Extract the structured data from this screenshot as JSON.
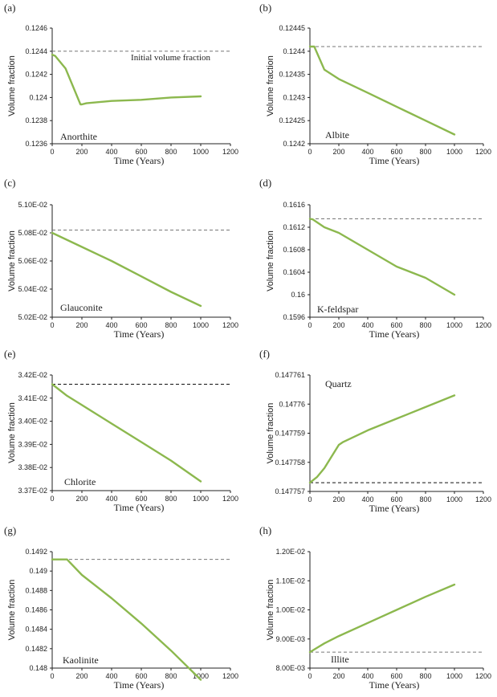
{
  "figure_title": "",
  "colors": {
    "series": "#8cb84e",
    "reference": "#777777",
    "reference_dark": "#111111",
    "axis": "#222222"
  },
  "chart_data": [
    {
      "panel": "(a)",
      "type": "line",
      "title": "Anorthite",
      "xlabel": "Time (Years)",
      "ylabel": "Volume fraction",
      "xlim": [
        0,
        1200
      ],
      "ylim": [
        0.1236,
        0.1246
      ],
      "xticks": [
        "0",
        "200",
        "400",
        "600",
        "800",
        "1000",
        "1200"
      ],
      "yticks": [
        {
          "v": 0.1236,
          "label": "0.1236"
        },
        {
          "v": 0.1238,
          "label": "0.1238"
        },
        {
          "v": 0.124,
          "label": "0.124"
        },
        {
          "v": 0.1242,
          "label": "0.1242"
        },
        {
          "v": 0.1244,
          "label": "0.1244"
        },
        {
          "v": 0.1246,
          "label": "0.1246"
        }
      ],
      "reference": {
        "value": 0.1244,
        "label": "Initial volume fraction",
        "style": "dashed",
        "color": "gray"
      },
      "series": [
        {
          "name": "Anorthite",
          "x": [
            0,
            20,
            90,
            190,
            200,
            230,
            400,
            600,
            800,
            1000
          ],
          "y": [
            0.12437,
            0.12436,
            0.12425,
            0.12394,
            0.12394,
            0.12395,
            0.12397,
            0.12398,
            0.124,
            0.12401
          ]
        }
      ]
    },
    {
      "panel": "(b)",
      "type": "line",
      "title": "Albite",
      "xlabel": "Time (Years)",
      "ylabel": "Volume fraction",
      "xlim": [
        0,
        1200
      ],
      "ylim": [
        0.1242,
        0.12445
      ],
      "xticks": [
        "0",
        "200",
        "400",
        "600",
        "800",
        "1000",
        "1200"
      ],
      "yticks": [
        {
          "v": 0.1242,
          "label": "0.1242"
        },
        {
          "v": 0.12425,
          "label": "0.12425"
        },
        {
          "v": 0.1243,
          "label": "0.1243"
        },
        {
          "v": 0.12435,
          "label": "0.12435"
        },
        {
          "v": 0.1244,
          "label": "0.1244"
        },
        {
          "v": 0.12445,
          "label": "0.12445"
        }
      ],
      "reference": {
        "value": 0.12441,
        "label": "",
        "style": "dashed",
        "color": "gray"
      },
      "series": [
        {
          "name": "Albite",
          "x": [
            0,
            30,
            100,
            200,
            400,
            600,
            800,
            1000
          ],
          "y": [
            0.12441,
            0.12441,
            0.12436,
            0.12434,
            0.12431,
            0.12428,
            0.12425,
            0.12422
          ]
        }
      ]
    },
    {
      "panel": "(c)",
      "type": "line",
      "title": "Glauconite",
      "xlabel": "Time (Years)",
      "ylabel": "Volume fraction",
      "xlim": [
        0,
        1200
      ],
      "ylim": [
        0.0502,
        0.051
      ],
      "xticks": [
        "0",
        "200",
        "400",
        "600",
        "800",
        "1000",
        "1200"
      ],
      "yticks": [
        {
          "v": 0.0502,
          "label": "5.02E-02"
        },
        {
          "v": 0.0504,
          "label": "5.04E-02"
        },
        {
          "v": 0.0506,
          "label": "5.06E-02"
        },
        {
          "v": 0.0508,
          "label": "5.08E-02"
        },
        {
          "v": 0.051,
          "label": "5.10E-02"
        }
      ],
      "reference": {
        "value": 0.05082,
        "label": "",
        "style": "dashed",
        "color": "gray"
      },
      "series": [
        {
          "name": "Glauconite",
          "x": [
            0,
            200,
            400,
            600,
            800,
            1000
          ],
          "y": [
            0.0508,
            0.0507,
            0.0506,
            0.05049,
            0.05038,
            0.05028
          ]
        }
      ]
    },
    {
      "panel": "(d)",
      "type": "line",
      "title": "K-feldspar",
      "xlabel": "Time (Years)",
      "ylabel": "Volume fraction",
      "xlim": [
        0,
        1200
      ],
      "ylim": [
        0.1596,
        0.1616
      ],
      "xticks": [
        "0",
        "200",
        "400",
        "600",
        "800",
        "1000",
        "1200"
      ],
      "yticks": [
        {
          "v": 0.1596,
          "label": "0.1596"
        },
        {
          "v": 0.16,
          "label": "0.16"
        },
        {
          "v": 0.1604,
          "label": "0.1604"
        },
        {
          "v": 0.1608,
          "label": "0.1608"
        },
        {
          "v": 0.1612,
          "label": "0.1612"
        },
        {
          "v": 0.1616,
          "label": "0.1616"
        }
      ],
      "reference": {
        "value": 0.16135,
        "label": "",
        "style": "dashed",
        "color": "gray"
      },
      "series": [
        {
          "name": "K-feldspar",
          "x": [
            0,
            20,
            100,
            200,
            400,
            600,
            800,
            1000
          ],
          "y": [
            0.16135,
            0.16134,
            0.1612,
            0.1611,
            0.1608,
            0.1605,
            0.1603,
            0.16
          ]
        }
      ]
    },
    {
      "panel": "(e)",
      "type": "line",
      "title": "Chlorite",
      "xlabel": "Time (Years)",
      "ylabel": "Volume fraction",
      "xlim": [
        0,
        1200
      ],
      "ylim": [
        0.0337,
        0.0342
      ],
      "xticks": [
        "0",
        "200",
        "400",
        "600",
        "800",
        "1000",
        "1200"
      ],
      "yticks": [
        {
          "v": 0.0337,
          "label": "3.37E-02"
        },
        {
          "v": 0.0338,
          "label": "3.38E-02"
        },
        {
          "v": 0.0339,
          "label": "3.39E-02"
        },
        {
          "v": 0.034,
          "label": "3.40E-02"
        },
        {
          "v": 0.0341,
          "label": "3.41E-02"
        },
        {
          "v": 0.0342,
          "label": "3.42E-02"
        }
      ],
      "reference": {
        "value": 0.03416,
        "label": "",
        "style": "dashed",
        "color": "black"
      },
      "series": [
        {
          "name": "Chlorite",
          "x": [
            0,
            100,
            200,
            400,
            600,
            800,
            1000
          ],
          "y": [
            0.03416,
            0.03411,
            0.03407,
            0.03399,
            0.03391,
            0.03383,
            0.03374
          ]
        }
      ]
    },
    {
      "panel": "(f)",
      "type": "line",
      "title": "Quartz",
      "xlabel": "Time (Years)",
      "ylabel": "Volume fraction",
      "xlim": [
        0,
        1200
      ],
      "ylim": [
        0.147757,
        0.147761
      ],
      "xticks": [
        "0",
        "200",
        "400",
        "600",
        "800",
        "1000",
        "1200"
      ],
      "yticks": [
        {
          "v": 0.147757,
          "label": "0.147757"
        },
        {
          "v": 0.147758,
          "label": "0.147758"
        },
        {
          "v": 0.147759,
          "label": "0.147759"
        },
        {
          "v": 0.14776,
          "label": "0.14776"
        },
        {
          "v": 0.147761,
          "label": "0.147761"
        }
      ],
      "reference": {
        "value": 0.1477573,
        "label": "",
        "style": "dashed",
        "color": "black"
      },
      "series": [
        {
          "name": "Quartz",
          "x": [
            0,
            50,
            100,
            200,
            230,
            400,
            600,
            800,
            1000
          ],
          "y": [
            0.1477573,
            0.1477575,
            0.1477578,
            0.1477586,
            0.1477587,
            0.1477591,
            0.1477595,
            0.1477599,
            0.1477603
          ]
        }
      ]
    },
    {
      "panel": "(g)",
      "type": "line",
      "title": "Kaolinite",
      "xlabel": "Time (Years)",
      "ylabel": "Volume fraction",
      "xlim": [
        0,
        1200
      ],
      "ylim": [
        0.148,
        0.1492
      ],
      "xticks": [
        "0",
        "200",
        "400",
        "600",
        "800",
        "1000",
        "1200"
      ],
      "yticks": [
        {
          "v": 0.148,
          "label": "0.148"
        },
        {
          "v": 0.1482,
          "label": "0.1482"
        },
        {
          "v": 0.1484,
          "label": "0.1484"
        },
        {
          "v": 0.1486,
          "label": "0.1486"
        },
        {
          "v": 0.1488,
          "label": "0.1488"
        },
        {
          "v": 0.149,
          "label": "0.149"
        },
        {
          "v": 0.1492,
          "label": "0.1492"
        }
      ],
      "reference": {
        "value": 0.14912,
        "label": "",
        "style": "dashed",
        "color": "gray"
      },
      "series": [
        {
          "name": "Kaolinite",
          "x": [
            0,
            100,
            200,
            400,
            600,
            800,
            1000
          ],
          "y": [
            0.14912,
            0.14912,
            0.14896,
            0.14872,
            0.14846,
            0.14818,
            0.14788
          ]
        }
      ]
    },
    {
      "panel": "(h)",
      "type": "line",
      "title": "Illite",
      "xlabel": "Time (Years)",
      "ylabel": "Volume fraction",
      "xlim": [
        0,
        1200
      ],
      "ylim": [
        0.008,
        0.012
      ],
      "xticks": [
        "0",
        "200",
        "400",
        "600",
        "800",
        "1000",
        "1200"
      ],
      "yticks": [
        {
          "v": 0.008,
          "label": "8.00E-03"
        },
        {
          "v": 0.009,
          "label": "9.00E-03"
        },
        {
          "v": 0.01,
          "label": "1.00E-02"
        },
        {
          "v": 0.011,
          "label": "1.10E-02"
        },
        {
          "v": 0.012,
          "label": "1.20E-02"
        }
      ],
      "reference": {
        "value": 0.00855,
        "label": "",
        "style": "dashed",
        "color": "gray"
      },
      "series": [
        {
          "name": "Illite",
          "x": [
            0,
            50,
            100,
            200,
            400,
            600,
            800,
            1000
          ],
          "y": [
            0.00855,
            0.0087,
            0.00885,
            0.0091,
            0.00955,
            0.01,
            0.01045,
            0.01087
          ]
        }
      ]
    }
  ]
}
